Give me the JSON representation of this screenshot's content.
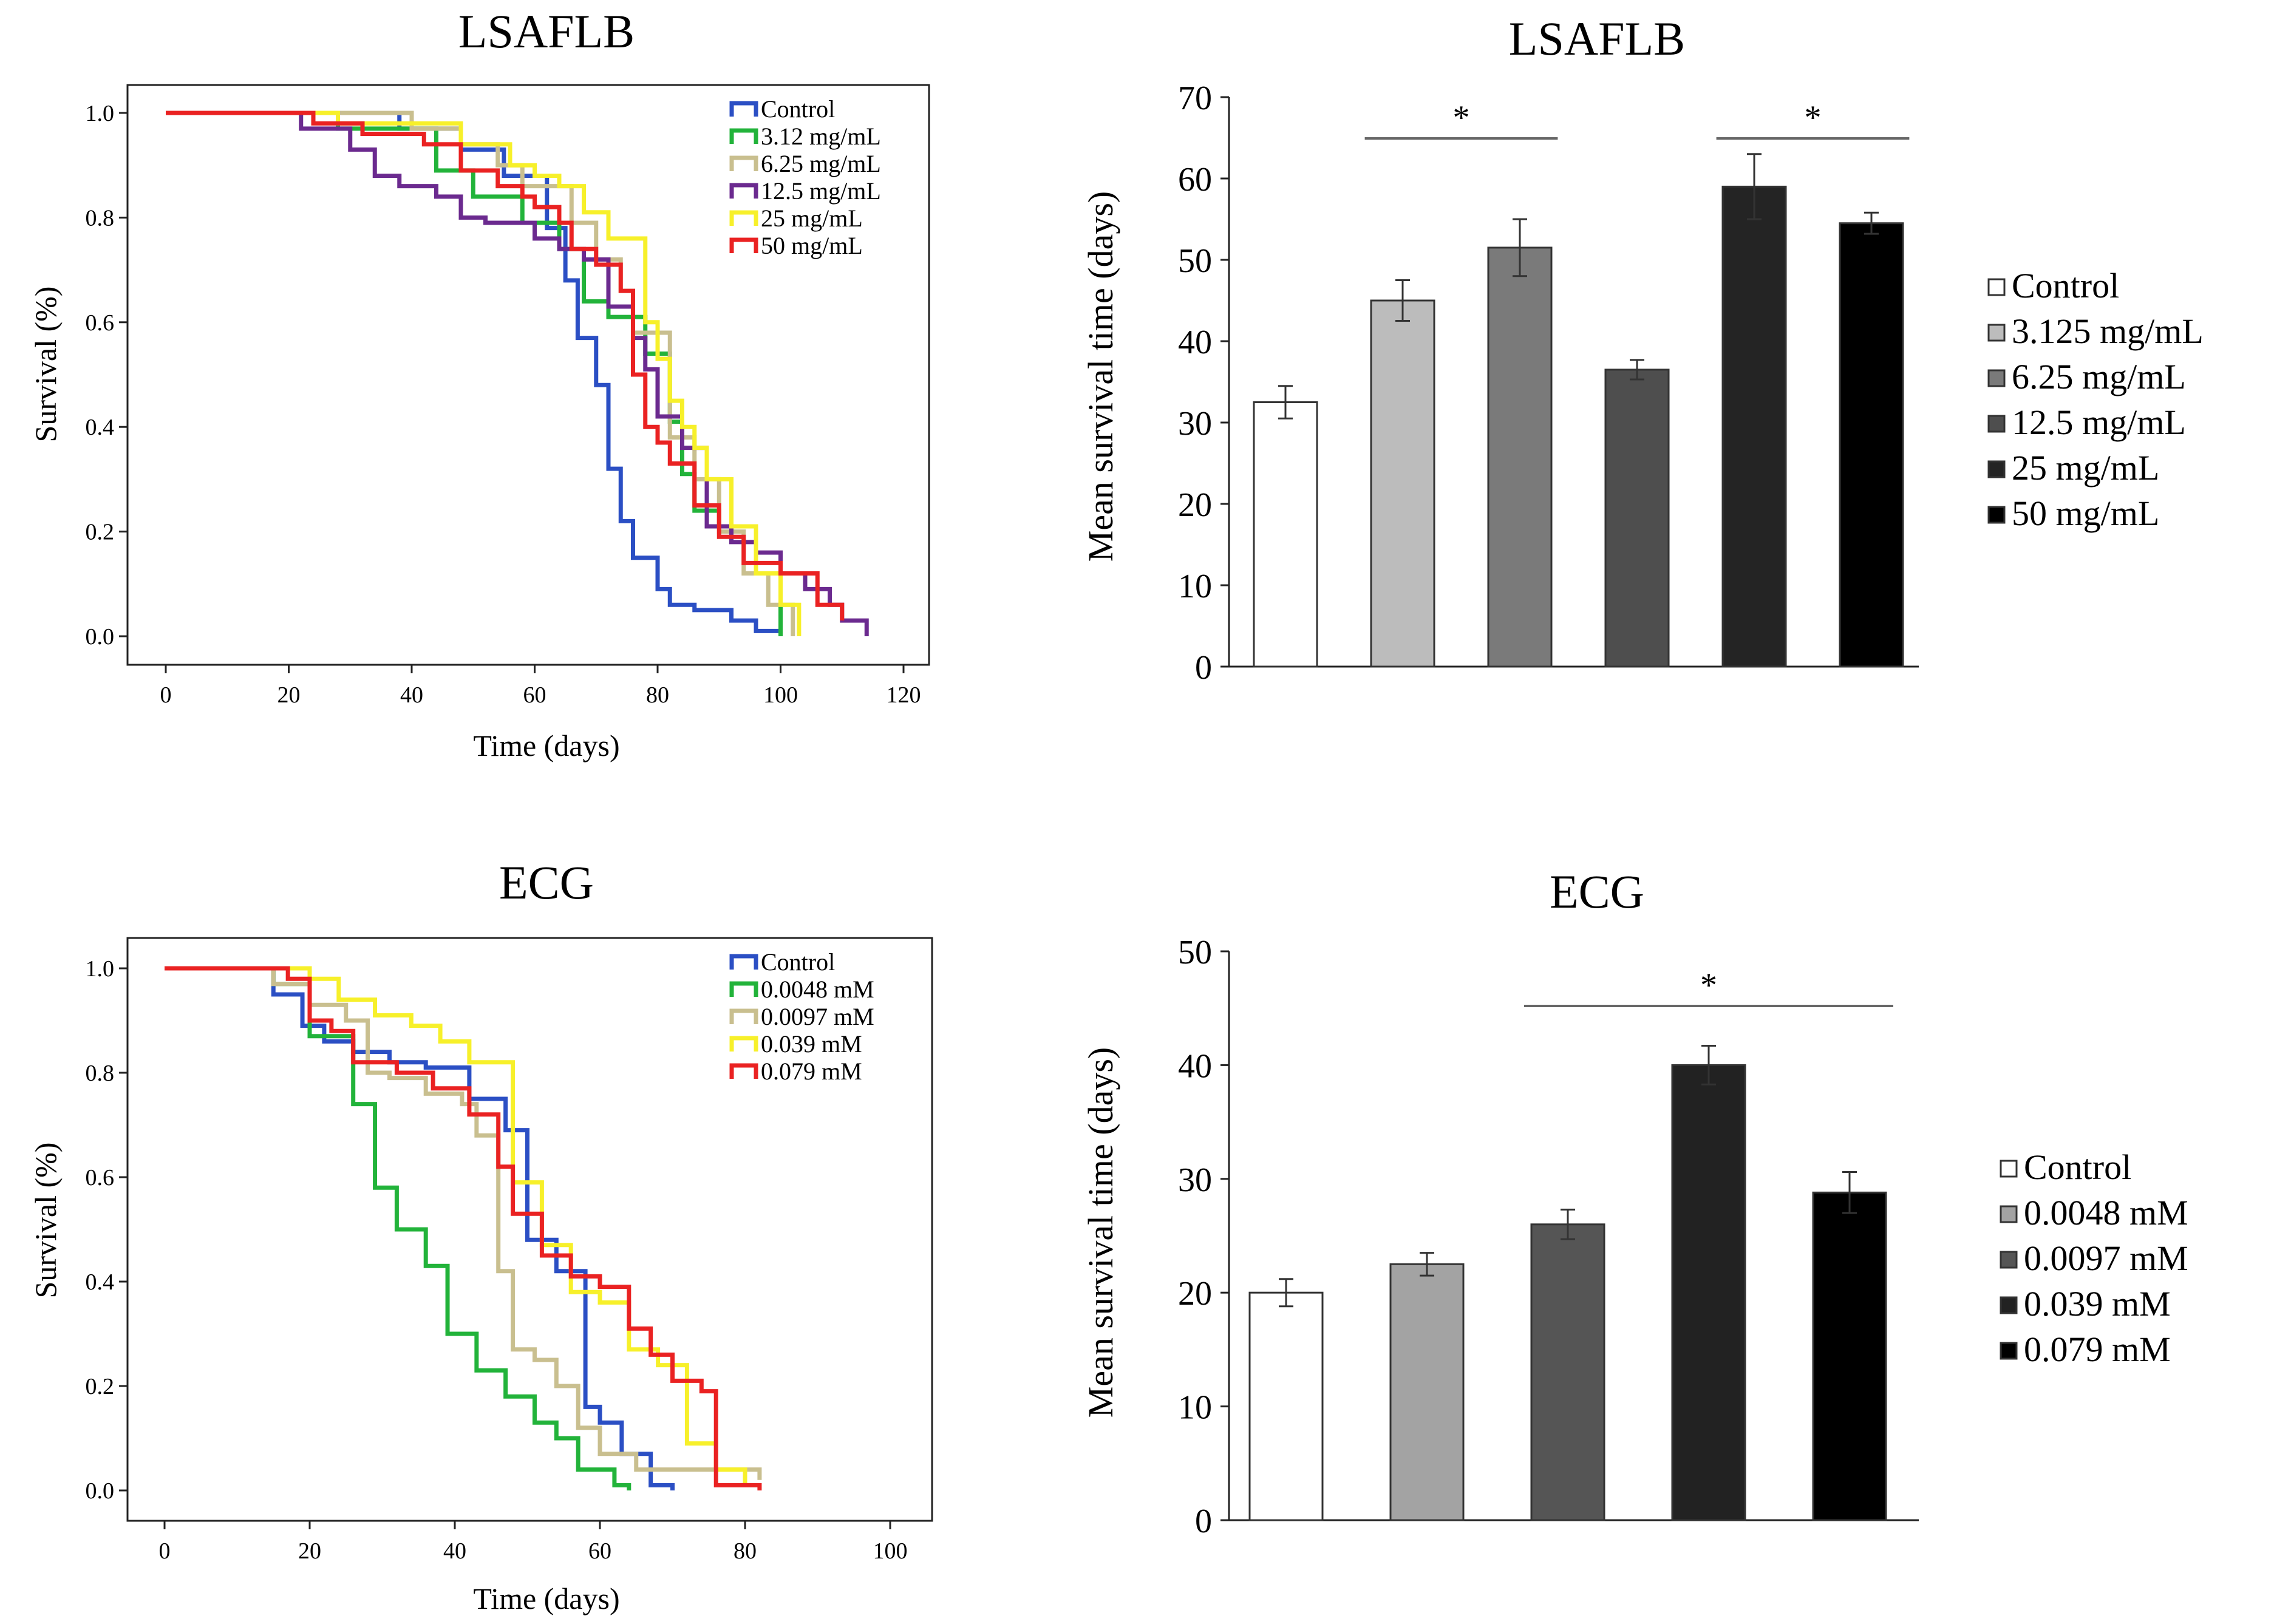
{
  "chart_data": [
    {
      "id": "km_lsaflb",
      "type": "line",
      "subtype": "kaplan-meier",
      "title": "LSAFLB",
      "xlabel": "Time (days)",
      "ylabel": "Survival (%)",
      "xlim": [
        0,
        120
      ],
      "ylim": [
        0,
        1
      ],
      "xticks": [
        0,
        20,
        40,
        60,
        80,
        100,
        120
      ],
      "xtick_labels": [
        "0",
        "20",
        "40",
        "60",
        "80",
        "100",
        "120"
      ],
      "yticks": [
        0,
        0.2,
        0.4,
        0.6,
        0.8,
        1.0
      ],
      "ytick_labels": [
        "0.0",
        "0.2",
        "0.4",
        "0.6",
        "0.8",
        "1.0"
      ],
      "legend_position": "top-right",
      "series": [
        {
          "name": "Control",
          "color": "#2b4fc4",
          "times": [
            0,
            38,
            48,
            55,
            62,
            65,
            67,
            70,
            72,
            74,
            76,
            80,
            82,
            86,
            92,
            96,
            100
          ],
          "survival": [
            1.0,
            0.97,
            0.93,
            0.88,
            0.78,
            0.68,
            0.57,
            0.48,
            0.32,
            0.22,
            0.15,
            0.09,
            0.06,
            0.05,
            0.03,
            0.01,
            0.0
          ]
        },
        {
          "name": "3.12 mg/mL",
          "color": "#22b33a",
          "times": [
            0,
            28,
            44,
            50,
            58,
            64,
            68,
            72,
            78,
            82,
            84,
            86,
            90,
            96,
            100
          ],
          "survival": [
            1.0,
            0.97,
            0.89,
            0.84,
            0.79,
            0.74,
            0.64,
            0.61,
            0.54,
            0.41,
            0.31,
            0.24,
            0.21,
            0.12,
            0.0
          ]
        },
        {
          "name": "6.25 mg/mL",
          "color": "#c9bf8f",
          "times": [
            0,
            40,
            48,
            54,
            58,
            66,
            70,
            74,
            76,
            82,
            86,
            90,
            94,
            98,
            102
          ],
          "survival": [
            1.0,
            0.97,
            0.94,
            0.9,
            0.86,
            0.79,
            0.72,
            0.66,
            0.58,
            0.38,
            0.3,
            0.2,
            0.12,
            0.06,
            0.0
          ]
        },
        {
          "name": "12.5 mg/mL",
          "color": "#6b2a8f",
          "times": [
            0,
            22,
            30,
            34,
            38,
            44,
            48,
            52,
            60,
            64,
            68,
            72,
            76,
            78,
            80,
            84,
            88,
            92,
            96,
            100,
            104,
            108,
            110,
            114
          ],
          "survival": [
            1.0,
            0.97,
            0.93,
            0.88,
            0.86,
            0.84,
            0.8,
            0.79,
            0.76,
            0.74,
            0.72,
            0.63,
            0.57,
            0.51,
            0.42,
            0.36,
            0.21,
            0.18,
            0.16,
            0.12,
            0.09,
            0.06,
            0.03,
            0.0
          ]
        },
        {
          "name": "25 mg/mL",
          "color": "#f7f02a",
          "times": [
            0,
            28,
            48,
            56,
            60,
            64,
            68,
            72,
            78,
            80,
            82,
            84,
            86,
            88,
            92,
            96,
            100,
            103
          ],
          "survival": [
            1.0,
            0.98,
            0.94,
            0.9,
            0.88,
            0.86,
            0.81,
            0.76,
            0.6,
            0.53,
            0.45,
            0.4,
            0.36,
            0.3,
            0.21,
            0.12,
            0.06,
            0.0
          ]
        },
        {
          "name": "50 mg/mL",
          "color": "#ea2222",
          "times": [
            0,
            24,
            32,
            42,
            48,
            54,
            58,
            60,
            64,
            66,
            70,
            74,
            76,
            78,
            80,
            82,
            86,
            90,
            94,
            100,
            106,
            110
          ],
          "survival": [
            1.0,
            0.98,
            0.96,
            0.94,
            0.89,
            0.86,
            0.84,
            0.82,
            0.79,
            0.74,
            0.71,
            0.66,
            0.5,
            0.4,
            0.37,
            0.33,
            0.25,
            0.19,
            0.14,
            0.12,
            0.06,
            0.03
          ]
        }
      ]
    },
    {
      "id": "bar_lsaflb",
      "type": "bar",
      "title": "LSAFLB",
      "xlabel": "",
      "ylabel": "Mean survival time (days)",
      "ylim": [
        0,
        70
      ],
      "yticks": [
        0,
        10,
        20,
        30,
        40,
        50,
        60,
        70
      ],
      "ytick_labels": [
        "0",
        "10",
        "20",
        "30",
        "40",
        "50",
        "60",
        "70"
      ],
      "categories": [
        "Control",
        "3.125 mg/mL",
        "6.25 mg/mL",
        "12.5 mg/mL",
        "25 mg/mL",
        "50 mg/mL"
      ],
      "values": [
        32.5,
        45,
        51.5,
        36.5,
        59,
        54.5
      ],
      "errors": [
        2,
        2.5,
        3.5,
        1.2,
        4,
        1.3
      ],
      "colors": [
        "#ffffff",
        "#bcbcbc",
        "#7a7a7a",
        "#4e4e4e",
        "#242424",
        "#000000"
      ],
      "legend_position": "right",
      "significance": [
        {
          "from": 1,
          "to": 2,
          "label": "*"
        },
        {
          "from": 4,
          "to": 5,
          "label": "*"
        }
      ]
    },
    {
      "id": "km_ecg",
      "type": "line",
      "subtype": "kaplan-meier",
      "title": "ECG",
      "xlabel": "Time (days)",
      "ylabel": "Survival (%)",
      "xlim": [
        0,
        100
      ],
      "ylim": [
        0,
        1
      ],
      "xticks": [
        0,
        20,
        40,
        60,
        80,
        100
      ],
      "xtick_labels": [
        "0",
        "20",
        "40",
        "60",
        "80",
        "100"
      ],
      "yticks": [
        0,
        0.2,
        0.4,
        0.6,
        0.8,
        1.0
      ],
      "ytick_labels": [
        "0.0",
        "0.2",
        "0.4",
        "0.6",
        "0.8",
        "1.0"
      ],
      "legend_position": "top-right",
      "series": [
        {
          "name": "Control",
          "color": "#2b4fc4",
          "times": [
            0,
            15,
            19,
            22,
            26,
            31,
            36,
            42,
            47,
            50,
            54,
            58,
            60,
            63,
            67,
            70
          ],
          "survival": [
            1.0,
            0.95,
            0.89,
            0.86,
            0.84,
            0.82,
            0.81,
            0.75,
            0.69,
            0.48,
            0.42,
            0.16,
            0.13,
            0.07,
            0.01,
            0.0
          ]
        },
        {
          "name": "0.0048 mM",
          "color": "#22b33a",
          "times": [
            0,
            15,
            20,
            26,
            29,
            32,
            36,
            39,
            43,
            47,
            51,
            54,
            57,
            62,
            64
          ],
          "survival": [
            1.0,
            0.97,
            0.87,
            0.74,
            0.58,
            0.5,
            0.43,
            0.3,
            0.23,
            0.18,
            0.13,
            0.1,
            0.04,
            0.01,
            0.0
          ]
        },
        {
          "name": "0.0097 mM",
          "color": "#c9bf8f",
          "times": [
            0,
            15,
            20,
            25,
            28,
            31,
            36,
            41,
            43,
            46,
            48,
            51,
            54,
            57,
            60,
            65,
            82
          ],
          "survival": [
            1.0,
            0.97,
            0.93,
            0.9,
            0.8,
            0.79,
            0.76,
            0.74,
            0.68,
            0.42,
            0.27,
            0.25,
            0.2,
            0.12,
            0.07,
            0.04,
            0.02
          ]
        },
        {
          "name": "0.039 mM",
          "color": "#f7f02a",
          "times": [
            0,
            20,
            24,
            29,
            34,
            38,
            42,
            48,
            52,
            56,
            60,
            64,
            68,
            72,
            76,
            80
          ],
          "survival": [
            1.0,
            0.98,
            0.94,
            0.91,
            0.89,
            0.86,
            0.82,
            0.59,
            0.47,
            0.38,
            0.36,
            0.27,
            0.24,
            0.09,
            0.04,
            0.01
          ]
        },
        {
          "name": "0.079 mM",
          "color": "#ea2222",
          "times": [
            0,
            17,
            20,
            23,
            26,
            32,
            37,
            42,
            46,
            48,
            52,
            56,
            60,
            64,
            67,
            70,
            74,
            76,
            82
          ],
          "survival": [
            1.0,
            0.98,
            0.9,
            0.88,
            0.82,
            0.8,
            0.77,
            0.72,
            0.62,
            0.53,
            0.45,
            0.41,
            0.39,
            0.31,
            0.26,
            0.21,
            0.19,
            0.01,
            0.0
          ]
        }
      ]
    },
    {
      "id": "bar_ecg",
      "type": "bar",
      "title": "ECG",
      "xlabel": "",
      "ylabel": "Mean survival time (days)",
      "ylim": [
        0,
        50
      ],
      "yticks": [
        0,
        10,
        20,
        30,
        40,
        50
      ],
      "ytick_labels": [
        "0",
        "10",
        "20",
        "30",
        "40",
        "50"
      ],
      "categories": [
        "Control",
        "0.0048 mM",
        "0.0097 mM",
        "0.039 mM",
        "0.079 mM"
      ],
      "values": [
        20,
        22.5,
        26,
        40,
        28.8
      ],
      "errors": [
        1.2,
        1,
        1.3,
        1.7,
        1.8
      ],
      "colors": [
        "#ffffff",
        "#a3a3a3",
        "#555555",
        "#222222",
        "#000000"
      ],
      "legend_position": "right",
      "significance": [
        {
          "from": 2,
          "to": 4,
          "label": "*"
        }
      ]
    }
  ]
}
